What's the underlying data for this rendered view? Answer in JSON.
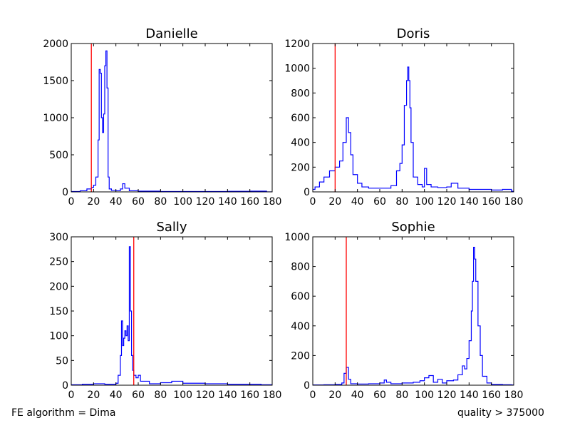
{
  "footer": {
    "left": "FE algorithm = Dima",
    "right": "quality > 375000"
  },
  "colors": {
    "histogram": "#0000ff",
    "threshold": "#ff0000",
    "axes": "#000000"
  },
  "chart_data": [
    {
      "type": "line",
      "title": "Danielle",
      "xlim": [
        0,
        180
      ],
      "ylim": [
        0,
        2000
      ],
      "xticks": [
        0,
        20,
        40,
        60,
        80,
        100,
        120,
        140,
        160,
        180
      ],
      "yticks": [
        0,
        500,
        1000,
        1500,
        2000
      ],
      "threshold_x": 18,
      "x": [
        0,
        8,
        14,
        18,
        20,
        22,
        24,
        25,
        26,
        27,
        28,
        29,
        30,
        31,
        32,
        33,
        34,
        36,
        40,
        44,
        46,
        48,
        52,
        60,
        80,
        100,
        120,
        140,
        160,
        175
      ],
      "y": [
        5,
        15,
        40,
        60,
        90,
        200,
        700,
        1650,
        1600,
        1000,
        800,
        1050,
        1700,
        1900,
        1400,
        200,
        40,
        20,
        15,
        40,
        110,
        50,
        15,
        10,
        5,
        5,
        5,
        8,
        10,
        0
      ]
    },
    {
      "type": "line",
      "title": "Doris",
      "xlim": [
        0,
        180
      ],
      "ylim": [
        0,
        1200
      ],
      "xticks": [
        0,
        20,
        40,
        60,
        80,
        100,
        120,
        140,
        160,
        180
      ],
      "yticks": [
        0,
        200,
        400,
        600,
        800,
        1000,
        1200
      ],
      "threshold_x": 20,
      "x": [
        0,
        2,
        6,
        10,
        15,
        20,
        24,
        27,
        30,
        32,
        34,
        36,
        40,
        44,
        50,
        60,
        70,
        75,
        78,
        80,
        82,
        84,
        85,
        86,
        87,
        88,
        90,
        94,
        98,
        100,
        102,
        106,
        112,
        120,
        124,
        130,
        140,
        160,
        170,
        178
      ],
      "y": [
        20,
        40,
        80,
        120,
        170,
        200,
        250,
        400,
        600,
        480,
        300,
        140,
        70,
        40,
        30,
        30,
        50,
        170,
        230,
        380,
        700,
        900,
        1010,
        900,
        680,
        400,
        120,
        60,
        40,
        190,
        60,
        40,
        35,
        40,
        70,
        30,
        20,
        15,
        20,
        5
      ]
    },
    {
      "type": "line",
      "title": "Sally",
      "xlim": [
        0,
        180
      ],
      "ylim": [
        0,
        300
      ],
      "xticks": [
        0,
        20,
        40,
        60,
        80,
        100,
        120,
        140,
        160,
        180
      ],
      "yticks": [
        0,
        50,
        100,
        150,
        200,
        250,
        300
      ],
      "threshold_x": 56,
      "x": [
        0,
        10,
        20,
        30,
        40,
        42,
        44,
        45,
        46,
        47,
        48,
        49,
        50,
        51,
        52,
        53,
        54,
        55,
        56,
        58,
        60,
        62,
        70,
        80,
        90,
        100,
        120,
        140,
        160,
        170
      ],
      "y": [
        1,
        2,
        3,
        2,
        4,
        20,
        60,
        130,
        80,
        95,
        110,
        100,
        120,
        90,
        280,
        150,
        60,
        30,
        20,
        15,
        20,
        8,
        3,
        5,
        8,
        4,
        3,
        2,
        2,
        1
      ]
    },
    {
      "type": "line",
      "title": "Sophie",
      "xlim": [
        0,
        180
      ],
      "ylim": [
        0,
        1000
      ],
      "xticks": [
        0,
        20,
        40,
        60,
        80,
        100,
        120,
        140,
        160,
        180
      ],
      "yticks": [
        0,
        200,
        400,
        600,
        800,
        1000
      ],
      "threshold_x": 30,
      "x": [
        0,
        10,
        20,
        26,
        28,
        30,
        32,
        34,
        40,
        50,
        60,
        64,
        66,
        70,
        80,
        90,
        96,
        100,
        104,
        108,
        112,
        116,
        120,
        126,
        130,
        134,
        136,
        138,
        140,
        142,
        143,
        144,
        145,
        146,
        148,
        150,
        152,
        156,
        160,
        170,
        178
      ],
      "y": [
        2,
        3,
        5,
        15,
        80,
        120,
        40,
        10,
        8,
        10,
        15,
        35,
        20,
        10,
        15,
        20,
        30,
        50,
        65,
        20,
        40,
        15,
        30,
        35,
        70,
        130,
        110,
        180,
        300,
        500,
        700,
        930,
        850,
        700,
        400,
        200,
        60,
        15,
        5,
        3,
        2
      ]
    }
  ]
}
